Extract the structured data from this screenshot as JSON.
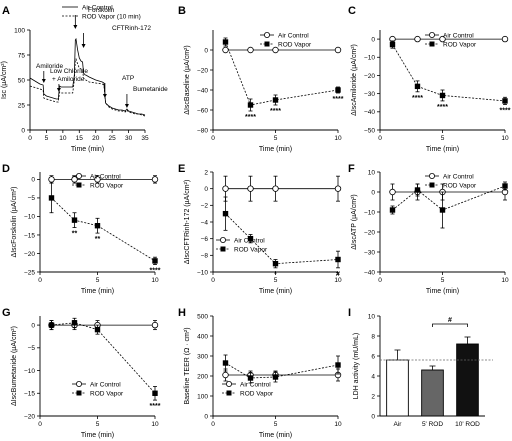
{
  "chart_data": [
    {
      "panel": "A",
      "type": "line",
      "xlabel": "Time (min)",
      "ylabel": "Isc (µA/cm²)",
      "xticks": [
        0,
        5,
        10,
        15,
        20,
        25,
        30,
        35
      ],
      "yticks": [
        0,
        25,
        50,
        75,
        100
      ],
      "xlim": [
        0,
        35
      ],
      "ylim": [
        0,
        100
      ],
      "legend": [
        "Air Control",
        "ROD Vapor (10 min)"
      ],
      "annotations": [
        "Amiloride",
        "Low Chloride + Amiloride",
        "Forskolin",
        "CFTRinh-172",
        "ATP",
        "Bumetanide"
      ],
      "series": [
        {
          "name": "Air Control",
          "style": "solid",
          "x": [
            0,
            1,
            2,
            3,
            4,
            4.2,
            5,
            6,
            7,
            8,
            8.6,
            9,
            9.4,
            10,
            11,
            12,
            13,
            13.5,
            13.8,
            14,
            14.5,
            15,
            15.5,
            16,
            16.3,
            16.8,
            17,
            18,
            20,
            22,
            22.5,
            23,
            24,
            25,
            26,
            27,
            28,
            29,
            29.5,
            30,
            31,
            32,
            33,
            34,
            35
          ],
          "y": [
            52,
            50,
            48,
            46,
            45,
            36,
            34,
            33,
            32,
            31,
            31,
            44,
            43,
            43,
            43,
            43,
            43,
            55,
            90,
            91,
            80,
            72,
            69,
            68,
            57,
            55,
            55,
            53,
            50,
            48,
            47,
            27,
            24,
            22,
            21,
            20,
            20,
            19,
            21,
            19,
            18,
            17,
            16,
            16,
            15
          ]
        },
        {
          "name": "ROD Vapor (10 min)",
          "style": "dashed",
          "x": [
            0,
            1,
            2,
            3,
            4,
            4.2,
            5,
            6,
            7,
            8,
            8.6,
            9,
            9.4,
            10,
            11,
            12,
            13,
            13.5,
            13.8,
            14,
            14.5,
            15,
            15.5,
            16,
            16.3,
            16.8,
            17,
            18,
            20,
            22,
            22.5,
            23,
            24,
            25,
            26,
            27,
            28,
            29,
            29.5,
            30,
            31,
            32,
            33,
            34,
            35
          ],
          "y": [
            44,
            43,
            42,
            41,
            40,
            32,
            31,
            30,
            29,
            28,
            28,
            38,
            37,
            37,
            37,
            37,
            37,
            50,
            70,
            71,
            66,
            62,
            61,
            60,
            52,
            50,
            50,
            48,
            47,
            46,
            45,
            27,
            23,
            21,
            20,
            19,
            19,
            18,
            20,
            18,
            17,
            16,
            16,
            15,
            14
          ]
        }
      ]
    },
    {
      "panel": "B",
      "type": "scatter",
      "xlabel": "Time (min)",
      "ylabel": "ΔIscBaseline (µA/cm²)",
      "xticks": [
        0,
        5,
        10
      ],
      "yticks": [
        0,
        -20,
        -40,
        -60,
        -80
      ],
      "xlim": [
        0,
        10
      ],
      "ylim": [
        -80,
        20
      ],
      "invert_y": true,
      "legend": [
        "Air Control",
        "ROD Vapor"
      ],
      "series": [
        {
          "name": "Air Control",
          "marker": "open-circle",
          "x": [
            1,
            3,
            5,
            10
          ],
          "y": [
            0,
            0,
            0,
            0
          ],
          "err": [
            0,
            0,
            0,
            0
          ]
        },
        {
          "name": "ROD Vapor",
          "marker": "filled-square",
          "x": [
            1,
            3,
            5,
            10
          ],
          "y": [
            8,
            -55,
            -50,
            -40
          ],
          "err": [
            4,
            6,
            5,
            3
          ]
        }
      ],
      "significance": [
        {
          "x": 3,
          "label": "****"
        },
        {
          "x": 5,
          "label": "****"
        },
        {
          "x": 10,
          "label": "****"
        }
      ]
    },
    {
      "panel": "C",
      "type": "scatter",
      "xlabel": "Time (min)",
      "ylabel": "ΔIscAmiloride (µA/cm²)",
      "xticks": [
        0,
        5,
        10
      ],
      "yticks": [
        -50,
        -40,
        -30,
        -20,
        -10,
        0
      ],
      "xlim": [
        0,
        10
      ],
      "ylim": [
        -50,
        5
      ],
      "legend": [
        "Air Control",
        "ROD Vapor"
      ],
      "series": [
        {
          "name": "Air Control",
          "marker": "open-circle",
          "x": [
            1,
            3,
            5,
            10
          ],
          "y": [
            0,
            0,
            0,
            0
          ],
          "err": [
            0,
            0,
            0,
            0
          ]
        },
        {
          "name": "ROD Vapor",
          "marker": "filled-square",
          "x": [
            1,
            3,
            5,
            10
          ],
          "y": [
            -3,
            -26,
            -31,
            -34
          ],
          "err": [
            2,
            3,
            3,
            2
          ]
        }
      ],
      "significance": [
        {
          "x": 3,
          "label": "****"
        },
        {
          "x": 5,
          "label": "****"
        },
        {
          "x": 10,
          "label": "****"
        }
      ]
    },
    {
      "panel": "D",
      "type": "scatter",
      "xlabel": "Time (min)",
      "ylabel": "ΔIscForskolin (µA/cm²)",
      "xticks": [
        0,
        5,
        10
      ],
      "yticks": [
        0,
        -5,
        -10,
        -15,
        -20,
        -25
      ],
      "xlim": [
        0,
        10
      ],
      "ylim": [
        -25,
        2
      ],
      "legend": [
        "Air Control",
        "ROD Vapor"
      ],
      "series": [
        {
          "name": "Air Control",
          "marker": "open-circle",
          "x": [
            1,
            3,
            5,
            10
          ],
          "y": [
            0,
            0,
            0,
            0
          ],
          "err": [
            1,
            1,
            1,
            1
          ]
        },
        {
          "name": "ROD Vapor",
          "marker": "filled-square",
          "x": [
            1,
            3,
            5,
            10
          ],
          "y": [
            -5,
            -11,
            -12.5,
            -22
          ],
          "err": [
            4,
            2,
            2,
            1
          ]
        }
      ],
      "significance": [
        {
          "x": 3,
          "label": "**"
        },
        {
          "x": 5,
          "label": "**"
        },
        {
          "x": 10,
          "label": "****"
        }
      ]
    },
    {
      "panel": "E",
      "type": "scatter",
      "xlabel": "Time (min)",
      "ylabel": "ΔIscCFTRinh-172 (µA/cm²)",
      "xticks": [
        0,
        5,
        10
      ],
      "yticks": [
        -10,
        -8,
        -6,
        -4,
        -2,
        0,
        2
      ],
      "xlim": [
        0,
        10
      ],
      "ylim": [
        -10,
        2
      ],
      "legend": [
        "Air Control",
        "ROD Vapor"
      ],
      "series": [
        {
          "name": "Air Control",
          "marker": "open-circle",
          "x": [
            1,
            3,
            5,
            10
          ],
          "y": [
            0,
            0,
            0,
            0
          ],
          "err": [
            1.5,
            1.5,
            1.5,
            1.5
          ]
        },
        {
          "name": "ROD Vapor",
          "marker": "filled-square",
          "x": [
            1,
            3,
            5,
            10
          ],
          "y": [
            -3,
            -6,
            -9,
            -8.5
          ],
          "err": [
            2,
            0.5,
            0.5,
            1
          ]
        }
      ],
      "significance": [
        {
          "x": 5,
          "label": "*"
        },
        {
          "x": 10,
          "label": "#"
        }
      ]
    },
    {
      "panel": "F",
      "type": "scatter",
      "xlabel": "Time (min)",
      "ylabel": "ΔIscATP (µA/cm²)",
      "xticks": [
        0,
        5,
        10
      ],
      "yticks": [
        -40,
        -30,
        -20,
        -10,
        0,
        10
      ],
      "xlim": [
        0,
        10
      ],
      "ylim": [
        -40,
        10
      ],
      "invert_y": true,
      "legend": [
        "Air Control",
        "ROD Vapor"
      ],
      "series": [
        {
          "name": "Air Control",
          "marker": "open-circle",
          "x": [
            1,
            3,
            5,
            10
          ],
          "y": [
            0,
            0,
            0,
            0
          ],
          "err": [
            4,
            4,
            4,
            4
          ]
        },
        {
          "name": "ROD Vapor",
          "marker": "filled-square",
          "x": [
            1,
            3,
            5,
            10
          ],
          "y": [
            -9,
            1,
            -9,
            3
          ],
          "err": [
            2,
            3,
            9,
            2
          ]
        }
      ]
    },
    {
      "panel": "G",
      "type": "scatter",
      "xlabel": "Time (min)",
      "ylabel": "ΔIscBumetanide (µA/cm²)",
      "xticks": [
        0,
        5,
        10
      ],
      "yticks": [
        0,
        -5,
        -10,
        -15,
        -20
      ],
      "xlim": [
        0,
        10
      ],
      "ylim": [
        -20,
        2
      ],
      "legend": [
        "Air Control",
        "ROD Vapor"
      ],
      "series": [
        {
          "name": "Air Control",
          "marker": "open-circle",
          "x": [
            1,
            3,
            5,
            10
          ],
          "y": [
            0,
            0,
            0,
            0
          ],
          "err": [
            1,
            1,
            1,
            1
          ]
        },
        {
          "name": "ROD Vapor",
          "marker": "filled-square",
          "x": [
            1,
            3,
            5,
            10
          ],
          "y": [
            0,
            0.5,
            -1,
            -15
          ],
          "err": [
            1,
            1,
            1,
            1.5
          ]
        }
      ],
      "significance": [
        {
          "x": 10,
          "label": "****"
        }
      ]
    },
    {
      "panel": "H",
      "type": "scatter",
      "xlabel": "Time (min)",
      "ylabel": "Baseline TEER (Ω · cm²)",
      "xticks": [
        0,
        5,
        10
      ],
      "yticks": [
        0,
        100,
        200,
        300,
        400,
        500
      ],
      "xlim": [
        0,
        10
      ],
      "ylim": [
        0,
        500
      ],
      "legend": [
        "Air Control",
        "ROD Vapor"
      ],
      "series": [
        {
          "name": "Air Control",
          "marker": "open-circle",
          "x": [
            1,
            3,
            5,
            10
          ],
          "y": [
            205,
            205,
            205,
            205
          ],
          "err": [
            30,
            20,
            20,
            30
          ]
        },
        {
          "name": "ROD Vapor",
          "marker": "filled-square",
          "x": [
            1,
            3,
            5,
            10
          ],
          "y": [
            265,
            190,
            195,
            255
          ],
          "err": [
            40,
            25,
            25,
            45
          ]
        }
      ]
    },
    {
      "panel": "I",
      "type": "bar",
      "xlabel": "",
      "ylabel": "LDH activity (mU/mL)",
      "categories": [
        "Air",
        "5' ROD",
        "10' ROD"
      ],
      "values": [
        5.6,
        4.6,
        7.2
      ],
      "err": [
        1.0,
        0.4,
        0.7
      ],
      "colors": [
        "#ffffff",
        "#666666",
        "#111111"
      ],
      "yticks": [
        0,
        2,
        4,
        6,
        8,
        10
      ],
      "ylim": [
        0,
        10
      ],
      "reference_line": 5.6,
      "significance": [
        {
          "between": [
            "5' ROD",
            "10' ROD"
          ],
          "label": "#"
        }
      ]
    }
  ]
}
